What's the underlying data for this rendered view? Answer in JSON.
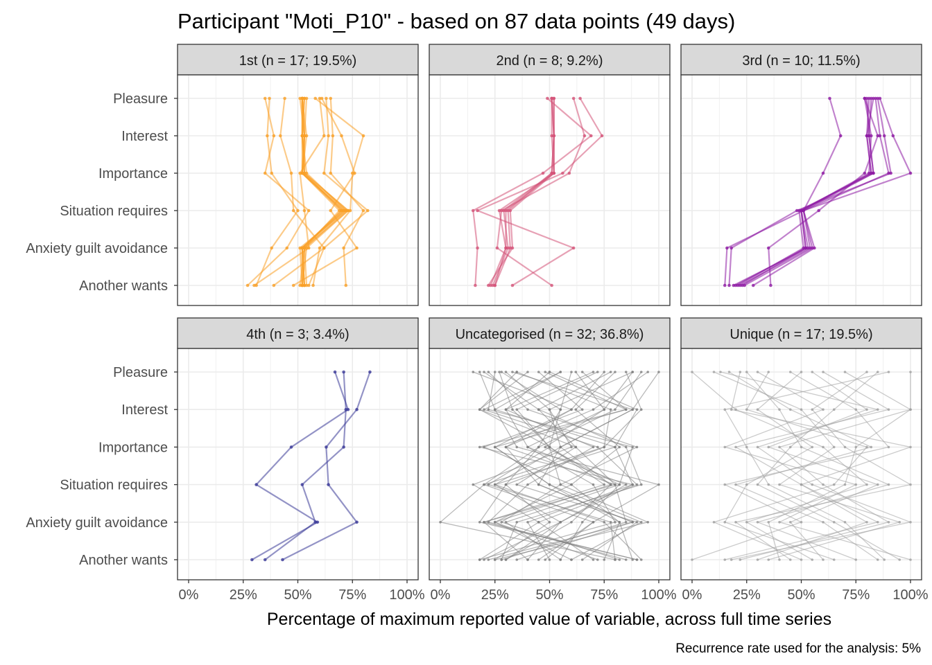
{
  "chart_data": {
    "type": "line",
    "title": "Participant \"Moti_P10\" - based on 87 data points (49 days)",
    "xlabel": "Percentage of maximum reported value of variable, across full time series",
    "caption": "Recurrence rate used for the analysis: 5%",
    "xlim": [
      0,
      100
    ],
    "x_ticks": [
      "0%",
      "25%",
      "50%",
      "75%",
      "100%"
    ],
    "variables": [
      "Pleasure",
      "Interest",
      "Importance",
      "Situation requires",
      "Anxiety guilt avoidance",
      "Another wants"
    ],
    "grid": true,
    "panels": [
      {
        "label": "1st (n = 17; 19.5%)",
        "color": "#F9A028",
        "series": [
          [
            52,
            52,
            53,
            73,
            53,
            52
          ],
          [
            52,
            53,
            52,
            71,
            52,
            53
          ],
          [
            53,
            52,
            53,
            70,
            52,
            52
          ],
          [
            52,
            53,
            52,
            72,
            53,
            51
          ],
          [
            53,
            52,
            52,
            71,
            52,
            53
          ],
          [
            54,
            53,
            53,
            73,
            54,
            52
          ],
          [
            52,
            54,
            52,
            69,
            53,
            54
          ],
          [
            51,
            53,
            52,
            70,
            52,
            53
          ],
          [
            52,
            52,
            54,
            72,
            51,
            52
          ],
          [
            35,
            39,
            35,
            55,
            45,
            27
          ],
          [
            37,
            36,
            38,
            50,
            38,
            31
          ],
          [
            63,
            64,
            62,
            82,
            62,
            55
          ],
          [
            65,
            66,
            65,
            80,
            71,
            72
          ],
          [
            61,
            70,
            76,
            65,
            77,
            48
          ],
          [
            44,
            42,
            47,
            48,
            62,
            39
          ],
          [
            58,
            80,
            75,
            74,
            60,
            57
          ],
          [
            60,
            62,
            51,
            53,
            55,
            30
          ]
        ]
      },
      {
        "label": "2nd (n = 8; 9.2%)",
        "color": "#D45479",
        "series": [
          [
            51,
            52,
            52,
            30,
            30,
            25
          ],
          [
            51,
            52,
            51,
            29,
            31,
            24
          ],
          [
            52,
            52,
            52,
            27,
            30,
            23
          ],
          [
            51,
            51,
            52,
            32,
            33,
            22
          ],
          [
            52,
            52,
            51,
            31,
            32,
            25
          ],
          [
            49,
            69,
            47,
            15,
            17,
            16
          ],
          [
            64,
            74,
            56,
            17,
            61,
            33
          ],
          [
            61,
            66,
            59,
            28,
            26,
            51
          ]
        ]
      },
      {
        "label": "3rd (n = 10; 11.5%)",
        "color": "#8E1CA4",
        "series": [
          [
            81,
            80,
            82,
            50,
            52,
            20
          ],
          [
            80,
            81,
            83,
            51,
            54,
            22
          ],
          [
            79,
            82,
            81,
            50,
            53,
            19
          ],
          [
            82,
            81,
            83,
            49,
            51,
            21
          ],
          [
            83,
            80,
            82,
            50,
            52,
            23
          ],
          [
            84,
            86,
            90,
            51,
            55,
            24
          ],
          [
            63,
            68,
            60,
            51,
            16,
            15
          ],
          [
            85,
            88,
            91,
            48,
            18,
            17
          ],
          [
            86,
            92,
            100,
            51,
            56,
            28
          ],
          [
            79,
            85,
            79,
            58,
            35,
            36
          ]
        ]
      },
      {
        "label": "4th (n = 3; 3.4%)",
        "color": "#3B3A98",
        "series": [
          [
            71,
            72,
            71,
            52,
            58,
            35
          ],
          [
            67,
            73,
            47,
            31,
            59,
            29
          ],
          [
            83,
            77,
            63,
            64,
            77,
            43
          ]
        ]
      },
      {
        "label": "Uncategorised (n = 32; 36.8%)",
        "color": "#808080",
        "series": [
          [
            20,
            45,
            62,
            80,
            85,
            28
          ],
          [
            35,
            18,
            50,
            75,
            20,
            90
          ],
          [
            50,
            90,
            80,
            25,
            55,
            40
          ],
          [
            75,
            60,
            30,
            45,
            88,
            22
          ],
          [
            88,
            75,
            48,
            82,
            30,
            55
          ],
          [
            27,
            33,
            50,
            22,
            78,
            80
          ],
          [
            55,
            20,
            72,
            90,
            45,
            18
          ],
          [
            65,
            85,
            25,
            50,
            92,
            60
          ],
          [
            30,
            50,
            55,
            78,
            25,
            72
          ],
          [
            92,
            80,
            45,
            30,
            50,
            25
          ],
          [
            18,
            25,
            80,
            88,
            40,
            50
          ],
          [
            45,
            65,
            20,
            60,
            82,
            88
          ],
          [
            70,
            30,
            40,
            85,
            55,
            20
          ],
          [
            85,
            92,
            75,
            20,
            70,
            45
          ],
          [
            22,
            40,
            90,
            55,
            28,
            82
          ],
          [
            60,
            55,
            50,
            78,
            60,
            30
          ],
          [
            40,
            18,
            62,
            35,
            90,
            65
          ],
          [
            95,
            70,
            30,
            80,
            20,
            40
          ],
          [
            33,
            88,
            55,
            25,
            75,
            92
          ],
          [
            78,
            45,
            85,
            92,
            35,
            28
          ],
          [
            15,
            60,
            25,
            50,
            82,
            75
          ],
          [
            50,
            30,
            70,
            40,
            22,
            85
          ],
          [
            62,
            75,
            40,
            70,
            80,
            18
          ],
          [
            25,
            22,
            88,
            82,
            65,
            55
          ],
          [
            88,
            50,
            60,
            15,
            45,
            70
          ],
          [
            48,
            85,
            18,
            88,
            55,
            30
          ],
          [
            72,
            35,
            50,
            55,
            95,
            25
          ],
          [
            35,
            78,
            75,
            30,
            18,
            90
          ],
          [
            55,
            25,
            35,
            100,
            70,
            48
          ],
          [
            80,
            62,
            82,
            60,
            25,
            60
          ],
          [
            100,
            88,
            55,
            45,
            88,
            35
          ],
          [
            28,
            55,
            45,
            20,
            0,
            80
          ]
        ]
      },
      {
        "label": "Unique (n = 17; 19.5%)",
        "color": "#A0A0A0",
        "series": [
          [
            0,
            20,
            60,
            80,
            25,
            55
          ],
          [
            13,
            85,
            30,
            55,
            100,
            18
          ],
          [
            17,
            45,
            82,
            20,
            60,
            85
          ],
          [
            22,
            18,
            100,
            50,
            80,
            30
          ],
          [
            30,
            60,
            15,
            75,
            40,
            100
          ],
          [
            50,
            30,
            55,
            25,
            15,
            65
          ],
          [
            70,
            100,
            40,
            60,
            90,
            22
          ],
          [
            80,
            55,
            70,
            100,
            20,
            45
          ],
          [
            90,
            15,
            25,
            35,
            70,
            88
          ],
          [
            45,
            75,
            90,
            15,
            50,
            0
          ],
          [
            25,
            40,
            50,
            90,
            30,
            75
          ],
          [
            60,
            90,
            20,
            50,
            85,
            15
          ],
          [
            35,
            25,
            80,
            65,
            10,
            50
          ],
          [
            85,
            65,
            45,
            30,
            65,
            95
          ],
          [
            10,
            50,
            65,
            40,
            95,
            35
          ],
          [
            55,
            80,
            35,
            85,
            45,
            60
          ],
          [
            100,
            100,
            75,
            70,
            35,
            40
          ]
        ]
      }
    ]
  }
}
